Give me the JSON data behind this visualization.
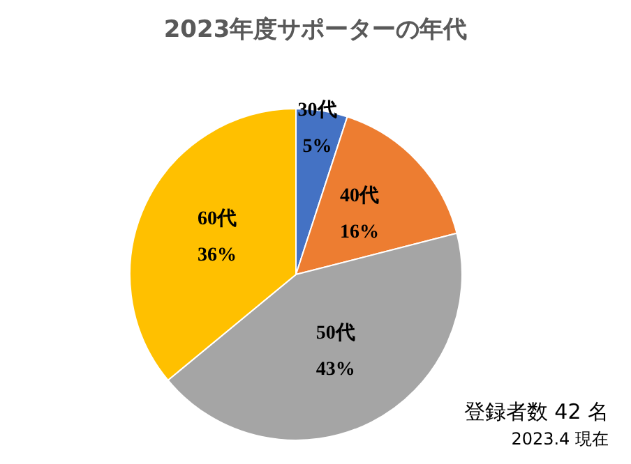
{
  "chart_data": {
    "type": "pie",
    "title": "2023年度サポーターの年代",
    "categories": [
      "30代",
      "40代",
      "50代",
      "60代"
    ],
    "values": [
      5,
      16,
      43,
      36
    ],
    "value_labels": [
      "5%",
      "16%",
      "43%",
      "36%"
    ],
    "colors": [
      "#4472c4",
      "#ed7d31",
      "#a5a5a5",
      "#ffc000"
    ],
    "annotations": [
      "登録者数 42 名",
      "2023.4 現在"
    ],
    "legend": false
  }
}
